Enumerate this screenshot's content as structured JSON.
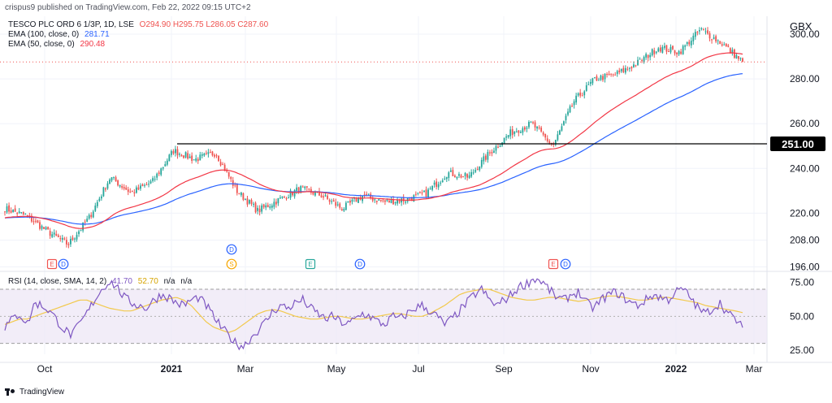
{
  "header": {
    "publisher": "crispus9 published on TradingView.com, Feb 22, 2022 09:15 UTC+2",
    "symbol": "TESCO PLC ORD 6 1/3P, 1D, LSE",
    "ohlc": "O294.90 H295.75 L286.05 C287.60",
    "ema100_label": "EMA (100, close, 0)",
    "ema100_value": "281.71",
    "ema50_label": "EMA (50, close, 0)",
    "ema50_value": "290.48",
    "currency": "GBX"
  },
  "rsi_legend": {
    "label": "RSI (14, close, SMA, 14, 2)",
    "rsi": "41.70",
    "sma": "52.70",
    "na1": "n/a",
    "na2": "n/a"
  },
  "footer": {
    "brand": "TradingView"
  },
  "colors": {
    "up": "#26a69a",
    "down": "#ef5350",
    "ema50": "#f23645",
    "ema100": "#2962ff",
    "rsi": "#7e57c2",
    "rsi_sma": "#f2c94c",
    "rsi_band": "#ede7f6",
    "grid": "#f0f3fa"
  },
  "chart_data": {
    "type": "candlestick",
    "x_labels": [
      "Oct",
      "2021",
      "Mar",
      "May",
      "Jul",
      "Sep",
      "Nov",
      "2022",
      "Mar"
    ],
    "price_ticks": [
      "300.00",
      "280.00",
      "260.00",
      "240.00",
      "220.00",
      "208.00",
      "196.00"
    ],
    "price_range": [
      194,
      308
    ],
    "horizontal_line": {
      "value": 251.0,
      "label": "251.00"
    },
    "last_price": 287.6,
    "ema100_last": 281.71,
    "ema50_last": 290.48,
    "close_path": [
      {
        "date": "Sep 2020",
        "close": 222
      },
      {
        "date": "Oct 2020",
        "close": 219
      },
      {
        "date": "Oct 2020",
        "close": 212
      },
      {
        "date": "Nov 2020",
        "close": 206
      },
      {
        "date": "Nov 2020",
        "close": 218
      },
      {
        "date": "Nov 2020",
        "close": 236
      },
      {
        "date": "Dec 2020",
        "close": 229
      },
      {
        "date": "Dec 2020",
        "close": 234
      },
      {
        "date": "Jan 2021",
        "close": 248
      },
      {
        "date": "Jan 2021",
        "close": 244
      },
      {
        "date": "Feb 2021",
        "close": 247
      },
      {
        "date": "Feb 2021",
        "close": 230
      },
      {
        "date": "Mar 2021",
        "close": 221
      },
      {
        "date": "Mar 2021",
        "close": 226
      },
      {
        "date": "Apr 2021",
        "close": 231
      },
      {
        "date": "Apr 2021",
        "close": 228
      },
      {
        "date": "May 2021",
        "close": 222
      },
      {
        "date": "May 2021",
        "close": 228
      },
      {
        "date": "Jun 2021",
        "close": 225
      },
      {
        "date": "Jun 2021",
        "close": 226
      },
      {
        "date": "Jul 2021",
        "close": 229
      },
      {
        "date": "Jul 2021",
        "close": 238
      },
      {
        "date": "Aug 2021",
        "close": 236
      },
      {
        "date": "Aug 2021",
        "close": 247
      },
      {
        "date": "Sep 2021",
        "close": 256
      },
      {
        "date": "Sep 2021",
        "close": 260
      },
      {
        "date": "Oct 2021",
        "close": 250
      },
      {
        "date": "Oct 2021",
        "close": 270
      },
      {
        "date": "Nov 2021",
        "close": 280
      },
      {
        "date": "Nov 2021",
        "close": 282
      },
      {
        "date": "Dec 2021",
        "close": 287
      },
      {
        "date": "Dec 2021",
        "close": 294
      },
      {
        "date": "Jan 2022",
        "close": 292
      },
      {
        "date": "Jan 2022",
        "close": 302
      },
      {
        "date": "Feb 2022",
        "close": 296
      },
      {
        "date": "Feb 2022",
        "close": 287.6
      }
    ],
    "events": [
      {
        "type": "E",
        "style": "earnings-negative",
        "near": "Oct 2020"
      },
      {
        "type": "D",
        "style": "dividend",
        "near": "Oct 2020"
      },
      {
        "type": "D",
        "style": "dividend",
        "near": "Feb 2021",
        "stacked": true
      },
      {
        "type": "S",
        "style": "split",
        "near": "Feb 2021"
      },
      {
        "type": "E",
        "style": "earnings-positive",
        "near": "Apr 2021"
      },
      {
        "type": "D",
        "style": "dividend",
        "near": "Jun 2021"
      },
      {
        "type": "E",
        "style": "earnings-negative",
        "near": "Oct 2021"
      },
      {
        "type": "D",
        "style": "dividend",
        "near": "Oct 2021"
      }
    ],
    "rsi": {
      "ticks": [
        "75.00",
        "50.00",
        "25.00"
      ],
      "range": [
        22,
        82
      ],
      "upper": 70,
      "lower": 30,
      "series": [
        42,
        48,
        52,
        44,
        60,
        58,
        54,
        47,
        40,
        36,
        44,
        52,
        62,
        70,
        76,
        72,
        64,
        60,
        58,
        56,
        62,
        66,
        64,
        60,
        58,
        62,
        64,
        58,
        50,
        42,
        36,
        30,
        28,
        34,
        40,
        46,
        54,
        58,
        56,
        60,
        62,
        56,
        52,
        48,
        50,
        46,
        44,
        48,
        52,
        50,
        46,
        44,
        50,
        48,
        52,
        56,
        58,
        54,
        50,
        44,
        48,
        54,
        60,
        66,
        70,
        62,
        58,
        62,
        66,
        72,
        74,
        78,
        76,
        70,
        64,
        62,
        66,
        68,
        60,
        56,
        62,
        66,
        68,
        64,
        60,
        58,
        62,
        66,
        64,
        62,
        68,
        70,
        64,
        56,
        52,
        56,
        60,
        52,
        48,
        42
      ],
      "sma": [
        44,
        46,
        48,
        48,
        50,
        52,
        54,
        56,
        58,
        60,
        62,
        62,
        60,
        58,
        56,
        55,
        54,
        54,
        56,
        58,
        60,
        62,
        63,
        64,
        62,
        58,
        52,
        46,
        42,
        40,
        38,
        40,
        44,
        48,
        52,
        54,
        55,
        54,
        52,
        50,
        49,
        48,
        48,
        49,
        50,
        50,
        49,
        48,
        48,
        49,
        50,
        51,
        52,
        52,
        51,
        50,
        50,
        52,
        55,
        58,
        62,
        66,
        68,
        69,
        70,
        70,
        68,
        66,
        64,
        63,
        62,
        62,
        63,
        64,
        64,
        63,
        62,
        61,
        62,
        63,
        64,
        65,
        65,
        64,
        63,
        62,
        62,
        63,
        64,
        64,
        63,
        62,
        61,
        60,
        58,
        57,
        56,
        55,
        54,
        52.7
      ]
    }
  }
}
